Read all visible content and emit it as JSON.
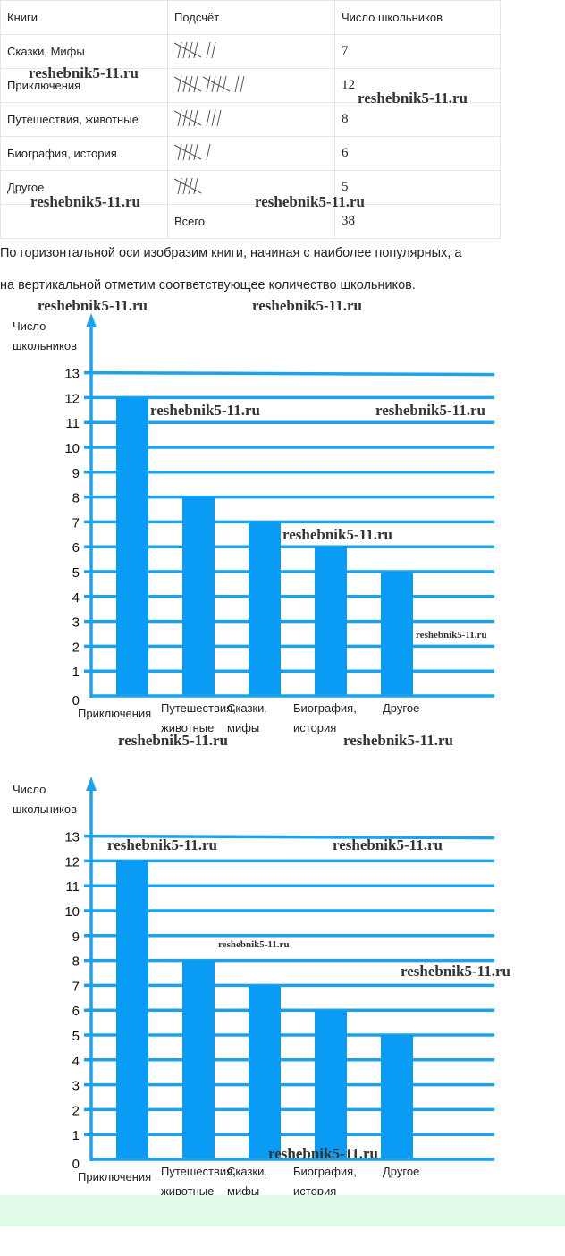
{
  "table": {
    "headers": [
      "Книги",
      "Подсчёт",
      "Число школьников"
    ],
    "rows": [
      {
        "book": "Сказки, Мифы",
        "tally": 7,
        "count": "7"
      },
      {
        "book": "Приключения",
        "tally": 12,
        "count": "12"
      },
      {
        "book": "Путешествия, животные",
        "tally": 8,
        "count": "8"
      },
      {
        "book": "Биография, история",
        "tally": 6,
        "count": "6"
      },
      {
        "book": "Другое",
        "tally": 5,
        "count": "5"
      }
    ],
    "total_label": "Всего",
    "total": "38"
  },
  "paragraph": [
    "По горизонтальной оси изобразим книги, начиная с наиболее популярных, а",
    "на вертикальной отметим соответствующее количество школьников."
  ],
  "watermark": "reshebnik5-11.ru",
  "colors": {
    "bar": "#0a9cf5",
    "grid": "#1ba2ea"
  },
  "chart_data": [
    {
      "type": "bar",
      "ylabel": [
        "Число",
        "школьников"
      ],
      "categories": [
        [
          "Приключения"
        ],
        [
          "Путешествия,",
          "животные"
        ],
        [
          "Сказки,",
          "мифы"
        ],
        [
          "Биография,",
          "история"
        ],
        [
          "Другое"
        ]
      ],
      "values": [
        12,
        8,
        7,
        6,
        5
      ],
      "ylim": [
        0,
        13
      ],
      "yticks": [
        "0",
        "1",
        "2",
        "3",
        "4",
        "5",
        "6",
        "7",
        "8",
        "9",
        "10",
        "11",
        "12",
        "13"
      ],
      "grid": true
    },
    {
      "type": "bar",
      "ylabel": [
        "Число",
        "школьников"
      ],
      "categories": [
        [
          "Приключения"
        ],
        [
          "Путешествия,",
          "животные"
        ],
        [
          "Сказки,",
          "мифы"
        ],
        [
          "Биография,",
          "история"
        ],
        [
          "Другое"
        ]
      ],
      "values": [
        12,
        8,
        7,
        6,
        5
      ],
      "ylim": [
        0,
        13
      ],
      "yticks": [
        "0",
        "1",
        "2",
        "3",
        "4",
        "5",
        "6",
        "7",
        "8",
        "9",
        "10",
        "11",
        "12",
        "13"
      ],
      "grid": true
    }
  ]
}
